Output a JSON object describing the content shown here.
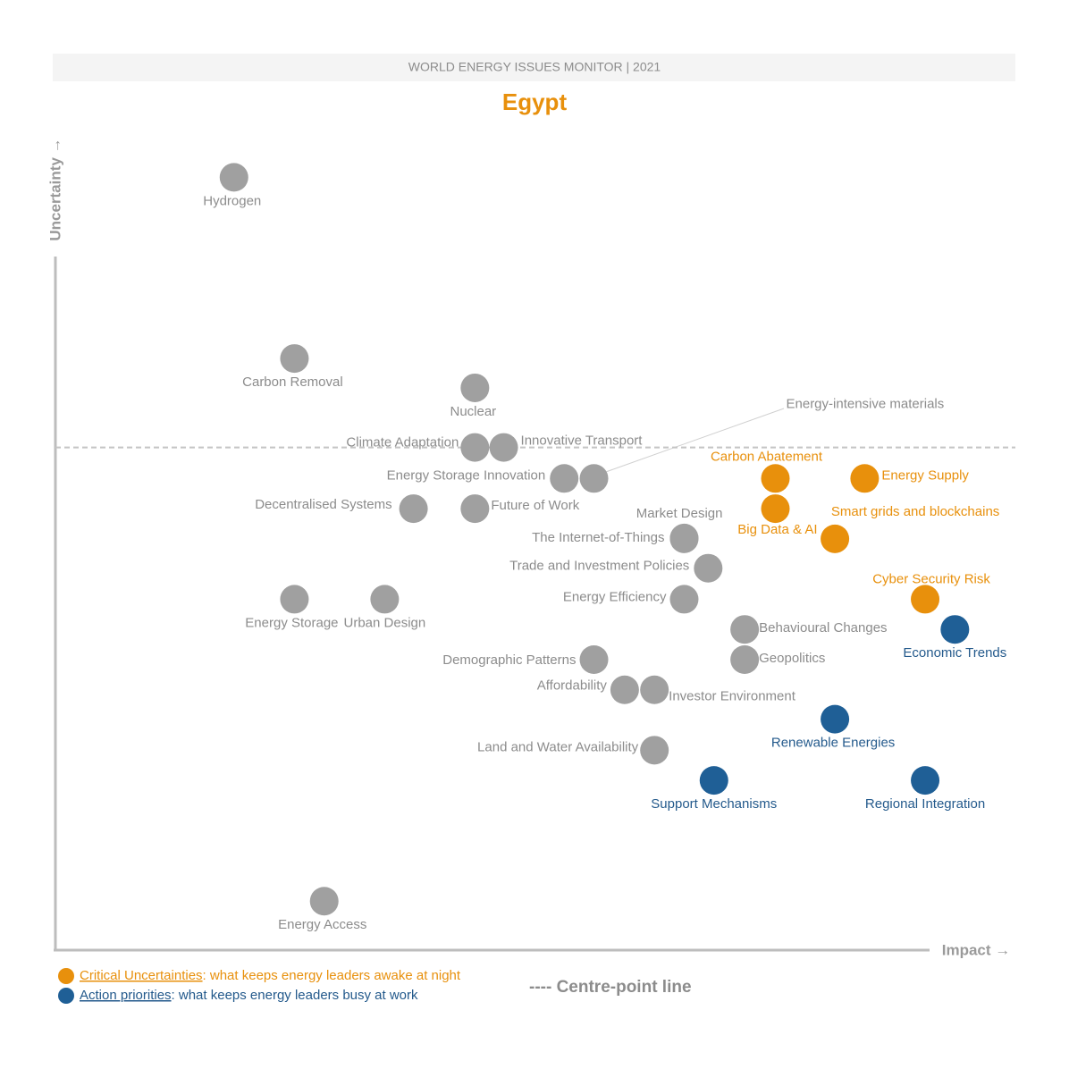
{
  "header": "WORLD ENERGY ISSUES MONITOR | 2021",
  "chart_data": {
    "type": "scatter",
    "title": "Egypt",
    "xlabel": "Impact →",
    "ylabel": "Uncertainty →",
    "xlim": [
      0,
      100
    ],
    "ylim": [
      0,
      100
    ],
    "centre_line": {
      "label": "---- Centre-point line",
      "y": 61.6
    },
    "series": [
      {
        "name": "Critical Uncertainties",
        "description": ": what keeps energy leaders awake at night",
        "color": "#e8900c",
        "labels": [
          "Carbon Abatement",
          "Energy Supply",
          "Big Data & AI",
          "Smart grids and blockchains",
          "Cyber Security Risk"
        ],
        "x": [
          75.0,
          84.3,
          75.0,
          81.2,
          90.6
        ],
        "y": [
          57.8,
          57.8,
          54.1,
          50.4,
          43.0
        ]
      },
      {
        "name": "Action priorities",
        "description": ": what keeps energy leaders busy at work",
        "color": "#1f5f96",
        "labels": [
          "Economic Trends",
          "Renewable Energies",
          "Support Mechanisms",
          "Regional Integration"
        ],
        "x": [
          93.7,
          81.2,
          68.6,
          90.6
        ],
        "y": [
          39.3,
          28.3,
          20.8,
          20.8
        ]
      },
      {
        "color": "#a0a0a0",
        "labels": [
          "Hydrogen",
          "Carbon Removal",
          "Nuclear",
          "Climate Adaptation",
          "Innovative Transport",
          "Energy Storage Innovation",
          "Energy-intensive materials",
          "Decentralised Systems",
          "Future of Work",
          "Market Design",
          "The Internet-of-Things",
          "Trade and Investment Policies",
          "Energy Efficiency",
          "Energy Storage",
          "Urban Design",
          "Behavioural Changes",
          "Demographic Patterns",
          "Geopolitics",
          "Affordability",
          "Investor Environment",
          "Land and Water Availability",
          "Energy Access"
        ],
        "x": [
          18.6,
          24.9,
          43.7,
          43.7,
          46.7,
          53.0,
          56.1,
          37.3,
          43.7,
          65.5,
          65.5,
          68.0,
          65.5,
          24.9,
          34.3,
          71.8,
          56.1,
          71.8,
          59.3,
          62.4,
          62.4,
          28.0
        ],
        "y": [
          94.7,
          72.5,
          68.9,
          61.6,
          61.6,
          57.8,
          57.8,
          54.1,
          54.1,
          50.5,
          50.4,
          46.8,
          43.0,
          43.0,
          43.0,
          39.3,
          35.6,
          35.6,
          31.9,
          31.9,
          24.5,
          6.0
        ]
      }
    ]
  }
}
